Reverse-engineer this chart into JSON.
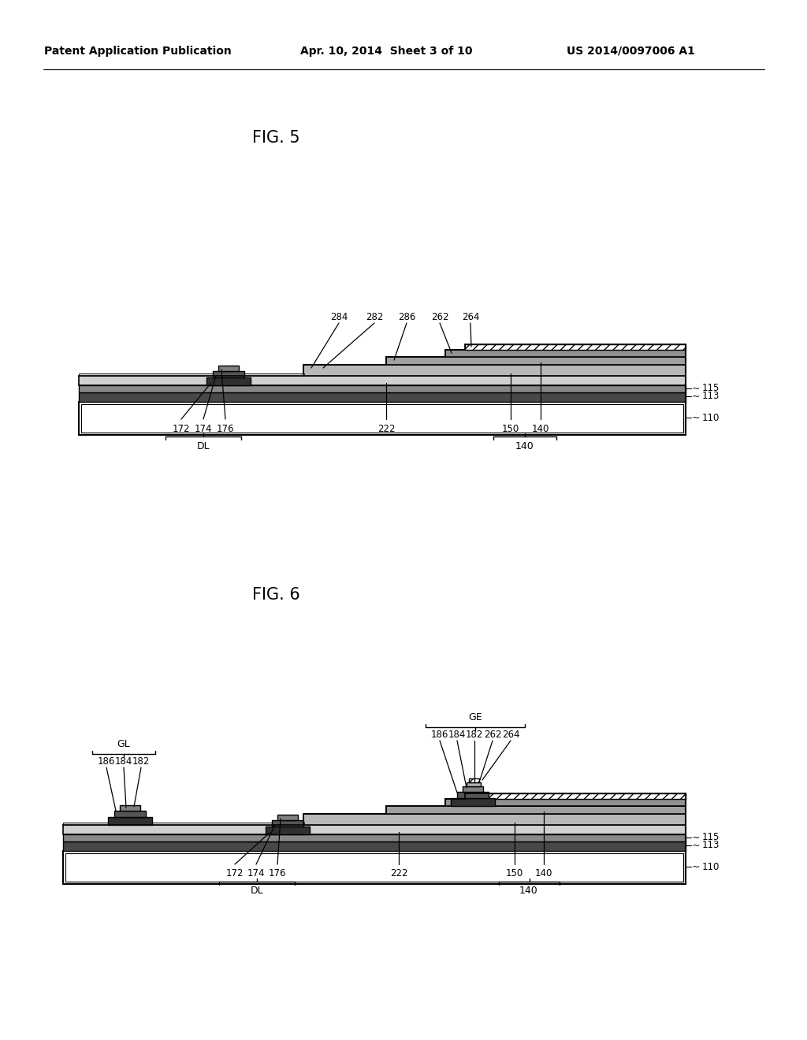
{
  "background_color": "#ffffff",
  "header_left": "Patent Application Publication",
  "header_mid": "Apr. 10, 2014  Sheet 3 of 10",
  "header_right": "US 2014/0097006 A1",
  "fig5_title": "FIG. 5",
  "fig6_title": "FIG. 6",
  "line_color": "#000000",
  "font_size_header": 10,
  "font_size_label": 8.5,
  "font_size_figtitle": 15
}
